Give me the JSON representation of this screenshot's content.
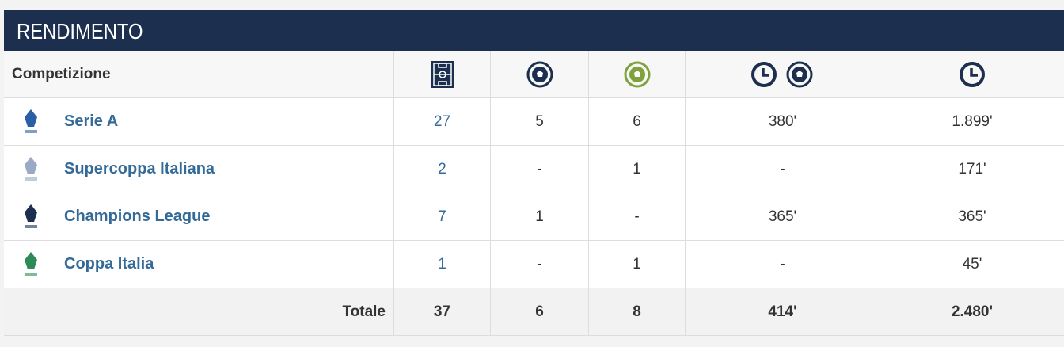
{
  "header": {
    "title": "RENDIMENTO"
  },
  "table": {
    "column_header": "Competizione",
    "rows": [
      {
        "name": "Serie A",
        "cells": [
          "27",
          "5",
          "6",
          "380'",
          "1.899'"
        ]
      },
      {
        "name": "Supercoppa Italiana",
        "cells": [
          "2",
          "-",
          "1",
          "-",
          "171'"
        ]
      },
      {
        "name": "Champions League",
        "cells": [
          "7",
          "1",
          "-",
          "365'",
          "365'"
        ]
      },
      {
        "name": "Coppa Italia",
        "cells": [
          "1",
          "-",
          "1",
          "-",
          "45'"
        ]
      }
    ],
    "total": {
      "label": "Totale",
      "cells": [
        "37",
        "6",
        "8",
        "414'",
        "2.480'"
      ]
    }
  }
}
